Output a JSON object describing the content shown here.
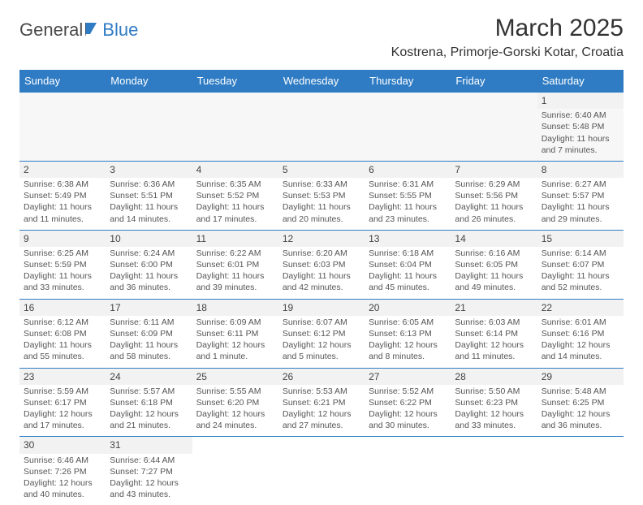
{
  "logo": {
    "text_a": "General",
    "text_b": "Blue"
  },
  "title": "March 2025",
  "location": "Kostrena, Primorje-Gorski Kotar, Croatia",
  "colors": {
    "header_bg": "#2f7cc4",
    "header_text": "#ffffff",
    "cell_border": "#2f7cc4",
    "body_text": "#555555",
    "daynum_bg": "#f2f2f2",
    "page_bg": "#ffffff"
  },
  "typography": {
    "title_fontsize": 30,
    "location_fontsize": 16,
    "dayheader_fontsize": 13,
    "cell_fontsize": 10.5
  },
  "day_headers": [
    "Sunday",
    "Monday",
    "Tuesday",
    "Wednesday",
    "Thursday",
    "Friday",
    "Saturday"
  ],
  "weeks": [
    [
      null,
      null,
      null,
      null,
      null,
      null,
      {
        "n": "1",
        "sunrise": "Sunrise: 6:40 AM",
        "sunset": "Sunset: 5:48 PM",
        "day1": "Daylight: 11 hours",
        "day2": "and 7 minutes."
      }
    ],
    [
      {
        "n": "2",
        "sunrise": "Sunrise: 6:38 AM",
        "sunset": "Sunset: 5:49 PM",
        "day1": "Daylight: 11 hours",
        "day2": "and 11 minutes."
      },
      {
        "n": "3",
        "sunrise": "Sunrise: 6:36 AM",
        "sunset": "Sunset: 5:51 PM",
        "day1": "Daylight: 11 hours",
        "day2": "and 14 minutes."
      },
      {
        "n": "4",
        "sunrise": "Sunrise: 6:35 AM",
        "sunset": "Sunset: 5:52 PM",
        "day1": "Daylight: 11 hours",
        "day2": "and 17 minutes."
      },
      {
        "n": "5",
        "sunrise": "Sunrise: 6:33 AM",
        "sunset": "Sunset: 5:53 PM",
        "day1": "Daylight: 11 hours",
        "day2": "and 20 minutes."
      },
      {
        "n": "6",
        "sunrise": "Sunrise: 6:31 AM",
        "sunset": "Sunset: 5:55 PM",
        "day1": "Daylight: 11 hours",
        "day2": "and 23 minutes."
      },
      {
        "n": "7",
        "sunrise": "Sunrise: 6:29 AM",
        "sunset": "Sunset: 5:56 PM",
        "day1": "Daylight: 11 hours",
        "day2": "and 26 minutes."
      },
      {
        "n": "8",
        "sunrise": "Sunrise: 6:27 AM",
        "sunset": "Sunset: 5:57 PM",
        "day1": "Daylight: 11 hours",
        "day2": "and 29 minutes."
      }
    ],
    [
      {
        "n": "9",
        "sunrise": "Sunrise: 6:25 AM",
        "sunset": "Sunset: 5:59 PM",
        "day1": "Daylight: 11 hours",
        "day2": "and 33 minutes."
      },
      {
        "n": "10",
        "sunrise": "Sunrise: 6:24 AM",
        "sunset": "Sunset: 6:00 PM",
        "day1": "Daylight: 11 hours",
        "day2": "and 36 minutes."
      },
      {
        "n": "11",
        "sunrise": "Sunrise: 6:22 AM",
        "sunset": "Sunset: 6:01 PM",
        "day1": "Daylight: 11 hours",
        "day2": "and 39 minutes."
      },
      {
        "n": "12",
        "sunrise": "Sunrise: 6:20 AM",
        "sunset": "Sunset: 6:03 PM",
        "day1": "Daylight: 11 hours",
        "day2": "and 42 minutes."
      },
      {
        "n": "13",
        "sunrise": "Sunrise: 6:18 AM",
        "sunset": "Sunset: 6:04 PM",
        "day1": "Daylight: 11 hours",
        "day2": "and 45 minutes."
      },
      {
        "n": "14",
        "sunrise": "Sunrise: 6:16 AM",
        "sunset": "Sunset: 6:05 PM",
        "day1": "Daylight: 11 hours",
        "day2": "and 49 minutes."
      },
      {
        "n": "15",
        "sunrise": "Sunrise: 6:14 AM",
        "sunset": "Sunset: 6:07 PM",
        "day1": "Daylight: 11 hours",
        "day2": "and 52 minutes."
      }
    ],
    [
      {
        "n": "16",
        "sunrise": "Sunrise: 6:12 AM",
        "sunset": "Sunset: 6:08 PM",
        "day1": "Daylight: 11 hours",
        "day2": "and 55 minutes."
      },
      {
        "n": "17",
        "sunrise": "Sunrise: 6:11 AM",
        "sunset": "Sunset: 6:09 PM",
        "day1": "Daylight: 11 hours",
        "day2": "and 58 minutes."
      },
      {
        "n": "18",
        "sunrise": "Sunrise: 6:09 AM",
        "sunset": "Sunset: 6:11 PM",
        "day1": "Daylight: 12 hours",
        "day2": "and 1 minute."
      },
      {
        "n": "19",
        "sunrise": "Sunrise: 6:07 AM",
        "sunset": "Sunset: 6:12 PM",
        "day1": "Daylight: 12 hours",
        "day2": "and 5 minutes."
      },
      {
        "n": "20",
        "sunrise": "Sunrise: 6:05 AM",
        "sunset": "Sunset: 6:13 PM",
        "day1": "Daylight: 12 hours",
        "day2": "and 8 minutes."
      },
      {
        "n": "21",
        "sunrise": "Sunrise: 6:03 AM",
        "sunset": "Sunset: 6:14 PM",
        "day1": "Daylight: 12 hours",
        "day2": "and 11 minutes."
      },
      {
        "n": "22",
        "sunrise": "Sunrise: 6:01 AM",
        "sunset": "Sunset: 6:16 PM",
        "day1": "Daylight: 12 hours",
        "day2": "and 14 minutes."
      }
    ],
    [
      {
        "n": "23",
        "sunrise": "Sunrise: 5:59 AM",
        "sunset": "Sunset: 6:17 PM",
        "day1": "Daylight: 12 hours",
        "day2": "and 17 minutes."
      },
      {
        "n": "24",
        "sunrise": "Sunrise: 5:57 AM",
        "sunset": "Sunset: 6:18 PM",
        "day1": "Daylight: 12 hours",
        "day2": "and 21 minutes."
      },
      {
        "n": "25",
        "sunrise": "Sunrise: 5:55 AM",
        "sunset": "Sunset: 6:20 PM",
        "day1": "Daylight: 12 hours",
        "day2": "and 24 minutes."
      },
      {
        "n": "26",
        "sunrise": "Sunrise: 5:53 AM",
        "sunset": "Sunset: 6:21 PM",
        "day1": "Daylight: 12 hours",
        "day2": "and 27 minutes."
      },
      {
        "n": "27",
        "sunrise": "Sunrise: 5:52 AM",
        "sunset": "Sunset: 6:22 PM",
        "day1": "Daylight: 12 hours",
        "day2": "and 30 minutes."
      },
      {
        "n": "28",
        "sunrise": "Sunrise: 5:50 AM",
        "sunset": "Sunset: 6:23 PM",
        "day1": "Daylight: 12 hours",
        "day2": "and 33 minutes."
      },
      {
        "n": "29",
        "sunrise": "Sunrise: 5:48 AM",
        "sunset": "Sunset: 6:25 PM",
        "day1": "Daylight: 12 hours",
        "day2": "and 36 minutes."
      }
    ],
    [
      {
        "n": "30",
        "sunrise": "Sunrise: 6:46 AM",
        "sunset": "Sunset: 7:26 PM",
        "day1": "Daylight: 12 hours",
        "day2": "and 40 minutes."
      },
      {
        "n": "31",
        "sunrise": "Sunrise: 6:44 AM",
        "sunset": "Sunset: 7:27 PM",
        "day1": "Daylight: 12 hours",
        "day2": "and 43 minutes."
      },
      null,
      null,
      null,
      null,
      null
    ]
  ]
}
